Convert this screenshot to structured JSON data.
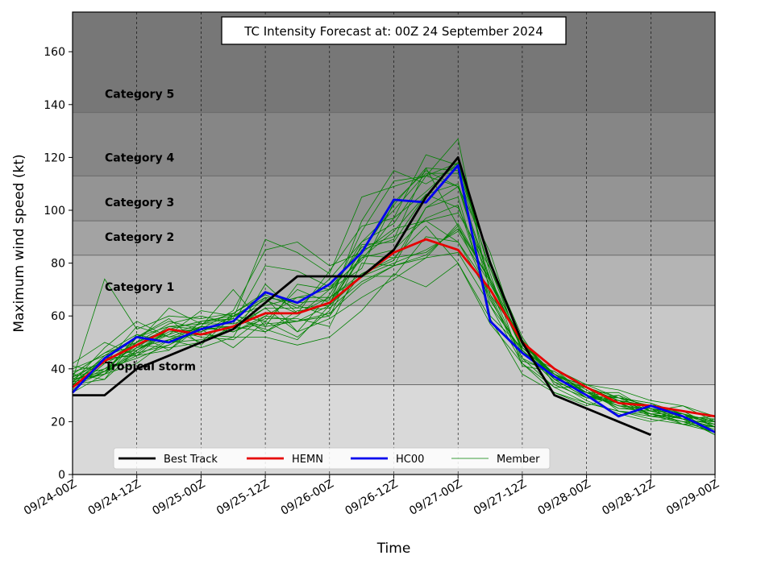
{
  "chart_data": {
    "type": "line",
    "title": "TC Intensity Forecast at: 00Z 24 September 2024",
    "xlabel": "Time",
    "ylabel": "Maximum wind speed (kt)",
    "xlim": [
      0,
      120
    ],
    "ylim": [
      0,
      175
    ],
    "x_unit": "hours after 09/24-00Z",
    "x_ticks": [
      {
        "x": 0,
        "label": "09/24-00Z"
      },
      {
        "x": 12,
        "label": "09/24-12Z"
      },
      {
        "x": 24,
        "label": "09/25-00Z"
      },
      {
        "x": 36,
        "label": "09/25-12Z"
      },
      {
        "x": 48,
        "label": "09/26-00Z"
      },
      {
        "x": 60,
        "label": "09/26-12Z"
      },
      {
        "x": 72,
        "label": "09/27-00Z"
      },
      {
        "x": 84,
        "label": "09/27-12Z"
      },
      {
        "x": 96,
        "label": "09/28-00Z"
      },
      {
        "x": 108,
        "label": "09/28-12Z"
      },
      {
        "x": 120,
        "label": "09/29-00Z"
      }
    ],
    "y_ticks": [
      0,
      20,
      40,
      60,
      80,
      100,
      120,
      140,
      160
    ],
    "grid": "vertical dashed lines at x ticks",
    "legend_position": "bottom-center",
    "bands": [
      {
        "label": "",
        "from": 0,
        "to": 34,
        "color": "#d9d9d9"
      },
      {
        "label": "Tropical storm",
        "from": 34,
        "to": 64,
        "color": "#c8c8c8"
      },
      {
        "label": "Category 1",
        "from": 64,
        "to": 83,
        "color": "#b4b4b4"
      },
      {
        "label": "Category 2",
        "from": 83,
        "to": 96,
        "color": "#a3a3a3"
      },
      {
        "label": "Category 3",
        "from": 96,
        "to": 113,
        "color": "#949494"
      },
      {
        "label": "Category 4",
        "from": 113,
        "to": 137,
        "color": "#868686"
      },
      {
        "label": "Category 5",
        "from": 137,
        "to": 175,
        "color": "#777777"
      }
    ],
    "series": [
      {
        "name": "Best Track",
        "color": "#000000",
        "x": [
          0,
          6,
          12,
          18,
          24,
          30,
          36,
          42,
          48,
          54,
          60,
          66,
          72,
          78,
          84,
          90,
          96,
          102,
          108
        ],
        "values": [
          30,
          30,
          40,
          45,
          50,
          55,
          65,
          75,
          75,
          75,
          85,
          105,
          120,
          80,
          50,
          30,
          25,
          20,
          15
        ]
      },
      {
        "name": "HEMN",
        "color": "#e60000",
        "x": [
          0,
          6,
          12,
          18,
          24,
          30,
          36,
          42,
          48,
          54,
          60,
          66,
          72,
          78,
          84,
          90,
          96,
          102,
          108,
          114,
          120
        ],
        "values": [
          33,
          43,
          49,
          55,
          53,
          56,
          61,
          61,
          65,
          75,
          84,
          89,
          85,
          70,
          50,
          40,
          33,
          27,
          26,
          24,
          22
        ]
      },
      {
        "name": "HC00",
        "color": "#0000ee",
        "x": [
          0,
          6,
          12,
          18,
          24,
          30,
          36,
          42,
          48,
          54,
          60,
          66,
          72,
          78,
          84,
          90,
          96,
          102,
          108,
          114,
          120
        ],
        "values": [
          31,
          44,
          52,
          50,
          55,
          58,
          69,
          65,
          72,
          84,
          104,
          103,
          117,
          58,
          46,
          37,
          30,
          22,
          26,
          22,
          16
        ]
      },
      {
        "name": "Member",
        "color": "#008000",
        "members": [
          [
            42,
            50,
            45,
            55,
            58,
            60,
            64,
            67,
            70,
            82,
            92,
            106,
            110,
            74,
            50,
            40,
            34,
            32,
            28,
            26,
            20
          ],
          [
            36,
            74,
            55,
            60,
            59,
            61,
            68,
            63,
            74,
            88,
            100,
            114,
            114,
            78,
            47,
            36,
            33,
            28,
            26,
            24,
            18
          ],
          [
            35,
            48,
            58,
            52,
            56,
            70,
            56,
            72,
            70,
            78,
            103,
            115,
            109,
            70,
            44,
            38,
            32,
            25,
            24,
            21,
            18
          ],
          [
            31,
            38,
            47,
            53,
            62,
            60,
            66,
            61,
            77,
            94,
            97,
            121,
            117,
            60,
            48,
            38,
            31,
            26,
            25,
            23,
            20
          ],
          [
            38,
            46,
            50,
            63,
            57,
            59,
            89,
            84,
            76,
            105,
            109,
            113,
            118,
            80,
            52,
            34,
            29,
            30,
            25,
            21,
            19
          ],
          [
            37,
            43,
            46,
            49,
            55,
            55,
            63,
            54,
            59,
            67,
            74,
            82,
            84,
            64,
            42,
            33,
            27,
            24,
            22,
            22,
            15
          ],
          [
            34,
            36,
            52,
            58,
            55,
            48,
            58,
            52,
            62,
            87,
            88,
            106,
            101,
            74,
            47,
            35,
            28,
            23,
            20,
            22,
            21
          ],
          [
            40,
            45,
            52,
            56,
            55,
            62,
            85,
            88,
            79,
            84,
            102,
            116,
            115,
            81,
            50,
            38,
            33,
            29,
            26,
            24,
            18
          ],
          [
            33,
            39,
            50,
            57,
            60,
            57,
            79,
            77,
            71,
            81,
            97,
            107,
            118,
            76,
            41,
            39,
            31,
            26,
            25,
            22,
            20
          ],
          [
            38,
            46,
            53,
            50,
            51,
            55,
            57,
            58,
            61,
            72,
            79,
            83,
            94,
            73,
            49,
            38,
            29,
            28,
            24,
            26,
            22
          ],
          [
            36,
            39,
            46,
            55,
            54,
            60,
            67,
            65,
            66,
            92,
            111,
            113,
            127,
            68,
            51,
            37,
            30,
            28,
            24,
            21,
            15
          ],
          [
            41,
            39,
            52,
            59,
            49,
            60,
            58,
            70,
            65,
            85,
            89,
            116,
            94,
            68,
            44,
            33,
            33,
            28,
            23,
            20,
            18
          ],
          [
            35,
            38,
            48,
            51,
            54,
            59,
            56,
            58,
            64,
            96,
            115,
            110,
            117,
            80,
            46,
            40,
            30,
            27,
            23,
            19,
            21
          ],
          [
            35,
            43,
            50,
            55,
            52,
            51,
            60,
            67,
            67,
            76,
            81,
            101,
            109,
            84,
            47,
            35,
            31,
            29,
            24,
            23,
            20
          ],
          [
            39,
            42,
            56,
            52,
            53,
            52,
            72,
            61,
            67,
            75,
            80,
            85,
            92,
            72,
            50,
            36,
            29,
            29,
            27,
            23,
            19
          ],
          [
            34,
            44,
            47,
            55,
            50,
            61,
            69,
            64,
            60,
            84,
            93,
            96,
            88,
            67,
            43,
            39,
            31,
            27,
            22,
            20,
            20
          ],
          [
            38,
            36,
            47,
            54,
            55,
            56,
            67,
            54,
            68,
            88,
            95,
            113,
            109,
            73,
            47,
            36,
            29,
            27,
            23,
            21,
            17
          ],
          [
            34,
            39,
            45,
            51,
            56,
            56,
            63,
            63,
            64,
            75,
            75,
            90,
            88,
            70,
            50,
            37,
            30,
            26,
            23,
            23,
            18
          ],
          [
            34,
            45,
            49,
            48,
            50,
            56,
            54,
            62,
            63,
            73,
            79,
            82,
            95,
            73,
            48,
            37,
            31,
            31,
            24,
            21,
            18
          ],
          [
            36,
            38,
            53,
            47,
            56,
            54,
            59,
            59,
            56,
            80,
            79,
            101,
            105,
            64,
            47,
            37,
            34,
            29,
            27,
            21,
            22
          ],
          [
            32,
            42,
            48,
            56,
            57,
            61,
            54,
            60,
            70,
            86,
            90,
            96,
            99,
            78,
            51,
            36,
            33,
            28,
            26,
            23,
            16
          ],
          [
            36,
            44,
            45,
            47,
            58,
            59,
            55,
            51,
            64,
            83,
            82,
            94,
            80,
            59,
            38,
            31,
            26,
            30,
            22,
            23,
            20
          ],
          [
            34,
            40,
            49,
            53,
            57,
            57,
            61,
            61,
            65,
            82,
            85,
            97,
            102,
            66,
            46,
            37,
            31,
            25,
            25,
            19,
            18
          ],
          [
            36,
            38,
            42,
            51,
            48,
            52,
            52,
            49,
            52,
            62,
            76,
            71,
            80,
            57,
            42,
            31,
            27,
            24,
            21,
            19,
            16
          ],
          [
            37,
            40,
            44,
            49,
            56,
            54,
            60,
            58,
            60,
            76,
            82,
            84,
            93,
            74,
            50,
            36,
            33,
            24,
            23,
            20,
            16
          ]
        ]
      }
    ]
  }
}
